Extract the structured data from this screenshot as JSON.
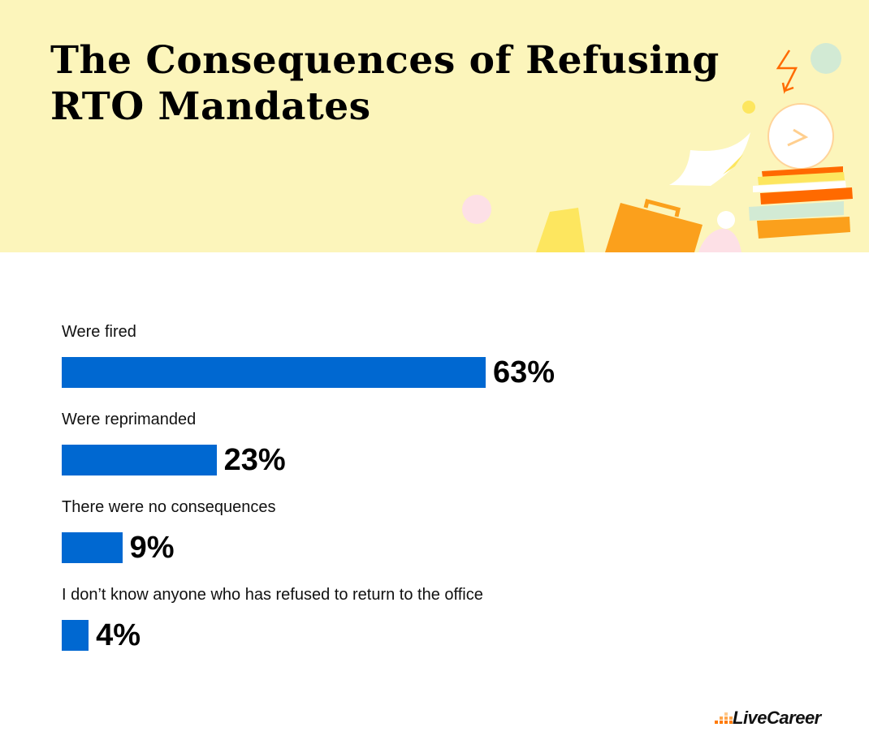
{
  "title_line1": "The Consequences of Refusing",
  "title_line2": "RTO Mandates",
  "colors": {
    "header_bg": "#fcf5bb",
    "bar": "#0068d1",
    "logo_accent": "#ff7a00"
  },
  "chart_data": {
    "type": "bar",
    "orientation": "horizontal",
    "title": "The Consequences of Refusing RTO Mandates",
    "categories": [
      "Were fired",
      "Were reprimanded",
      "There were no consequences",
      "I don’t know anyone who has refused to return to the office"
    ],
    "values": [
      63,
      23,
      9,
      4
    ],
    "value_labels": [
      "63%",
      "23%",
      "9%",
      "4%"
    ],
    "grid": false
  },
  "brand": {
    "name": "LiveCareer"
  }
}
